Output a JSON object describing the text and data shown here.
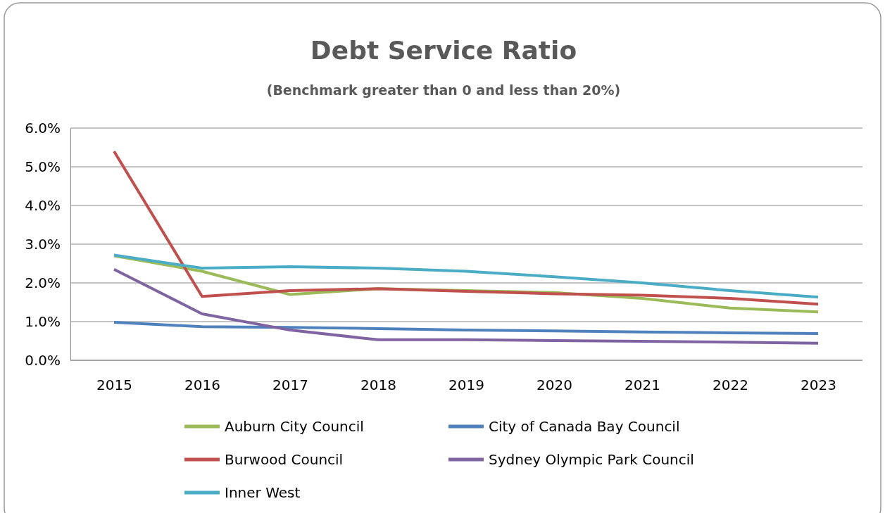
{
  "chart_data": {
    "type": "line",
    "title": "Debt Service Ratio",
    "subtitle": "(Benchmark greater than 0 and less than 20%)",
    "categories": [
      "2015",
      "2016",
      "2017",
      "2018",
      "2019",
      "2020",
      "2021",
      "2022",
      "2023"
    ],
    "series": [
      {
        "name": "Auburn City Council",
        "color": "#9bbb59",
        "values": [
          2.7,
          2.3,
          1.7,
          1.85,
          1.8,
          1.75,
          1.6,
          1.35,
          1.25
        ]
      },
      {
        "name": "City of Canada Bay Council",
        "color": "#4f81bd",
        "values": [
          0.98,
          0.87,
          0.85,
          0.82,
          0.78,
          0.76,
          0.73,
          0.71,
          0.69
        ]
      },
      {
        "name": "Burwood Council",
        "color": "#c0504d",
        "values": [
          5.4,
          1.65,
          1.8,
          1.85,
          1.78,
          1.72,
          1.68,
          1.6,
          1.45
        ]
      },
      {
        "name": "Sydney Olympic Park Council",
        "color": "#8064a2",
        "values": [
          2.35,
          1.2,
          0.78,
          0.53,
          0.53,
          0.51,
          0.49,
          0.47,
          0.44
        ]
      },
      {
        "name": "Inner West",
        "color": "#4bacc6",
        "values": [
          2.72,
          2.38,
          2.42,
          2.38,
          2.3,
          2.16,
          2.0,
          1.8,
          1.63
        ]
      }
    ],
    "ylim": [
      0,
      6
    ],
    "yticks": [
      {
        "value": 0,
        "label": "0.0%"
      },
      {
        "value": 1,
        "label": "1.0%"
      },
      {
        "value": 2,
        "label": "2.0%"
      },
      {
        "value": 3,
        "label": "3.0%"
      },
      {
        "value": 4,
        "label": "4.0%"
      },
      {
        "value": 5,
        "label": "5.0%"
      },
      {
        "value": 6,
        "label": "6.0%"
      }
    ],
    "grid": "y",
    "legend": "bottom",
    "marker": "none",
    "line_style": "solid"
  }
}
